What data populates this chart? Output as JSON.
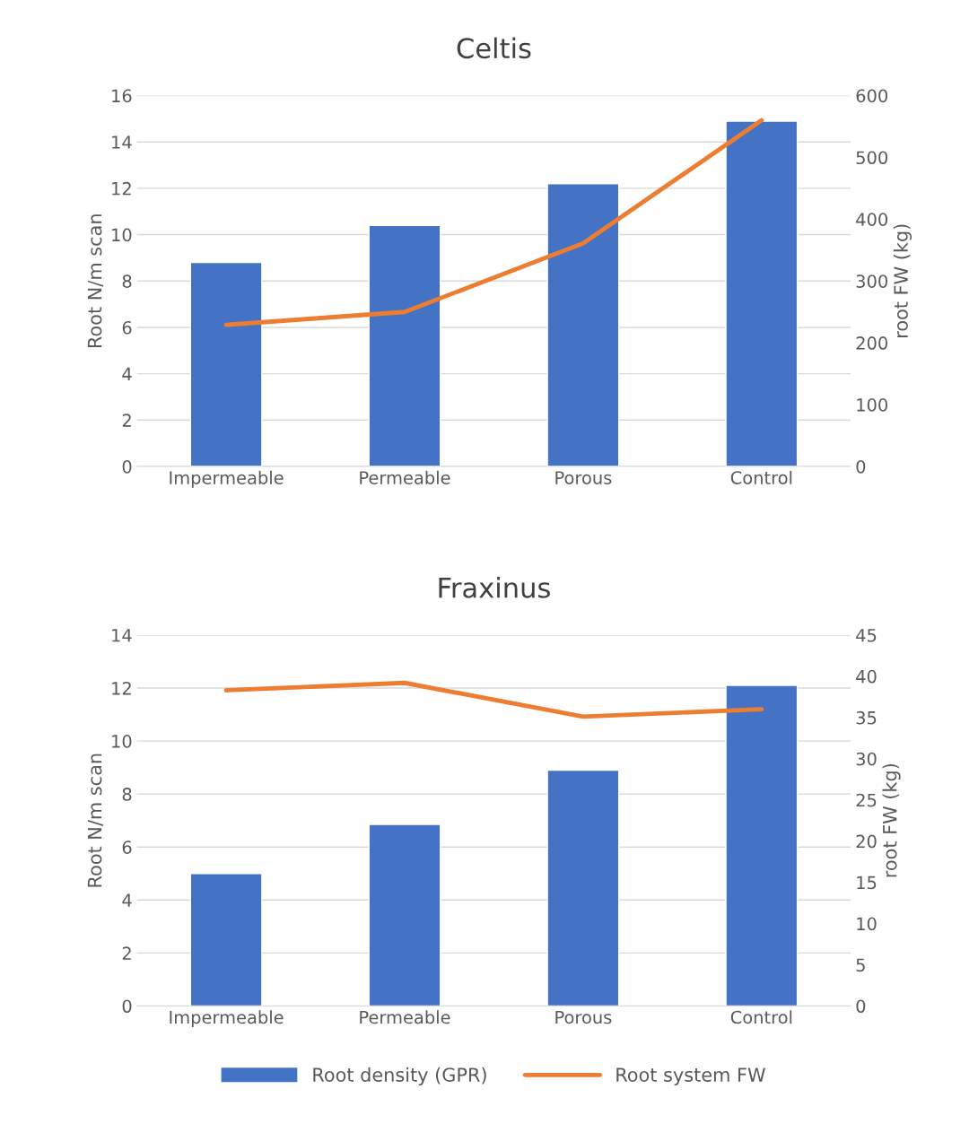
{
  "chart_data": [
    {
      "type": "bar",
      "title": "Celtis",
      "categories": [
        "Impermeable",
        "Permeable",
        "Porous",
        "Control"
      ],
      "ylabel": "Root N/m scan",
      "y2label": "root FW (kg)",
      "series": [
        {
          "color": "#4472c4",
          "values": [
            8.8,
            10.4,
            12.2,
            14.9
          ]
        },
        {
          "type": "line",
          "axis": "y2",
          "color": "#ed7d31",
          "values": [
            229,
            250,
            361,
            560
          ]
        }
      ],
      "ylim": [
        0,
        16
      ],
      "yticks": [
        0,
        2,
        4,
        6,
        8,
        10,
        12,
        14,
        16
      ],
      "y2lim": [
        0,
        600
      ],
      "y2ticks": [
        0,
        100,
        200,
        300,
        400,
        500,
        600
      ],
      "grid": "y",
      "legend": false
    },
    {
      "type": "bar",
      "title": "Fraxinus",
      "categories": [
        "Impermeable",
        "Permeable",
        "Porous",
        "Control"
      ],
      "ylabel": "Root N/m scan",
      "y2label": "root FW (kg)",
      "series": [
        {
          "name": "Root density (GPR)",
          "color": "#4472c4",
          "values": [
            5.0,
            6.85,
            8.9,
            12.1
          ]
        },
        {
          "type": "line",
          "axis": "y2",
          "name": "Root system FW",
          "color": "#ed7d31",
          "values": [
            38.3,
            39.2,
            35.1,
            36.0
          ]
        }
      ],
      "ylim": [
        0,
        14
      ],
      "yticks": [
        0,
        2,
        4,
        6,
        8,
        10,
        12,
        14
      ],
      "y2lim": [
        0,
        45
      ],
      "y2ticks": [
        0,
        5,
        10,
        15,
        20,
        25,
        30,
        35,
        40,
        45
      ],
      "grid": "y",
      "legend": "bottom"
    }
  ]
}
